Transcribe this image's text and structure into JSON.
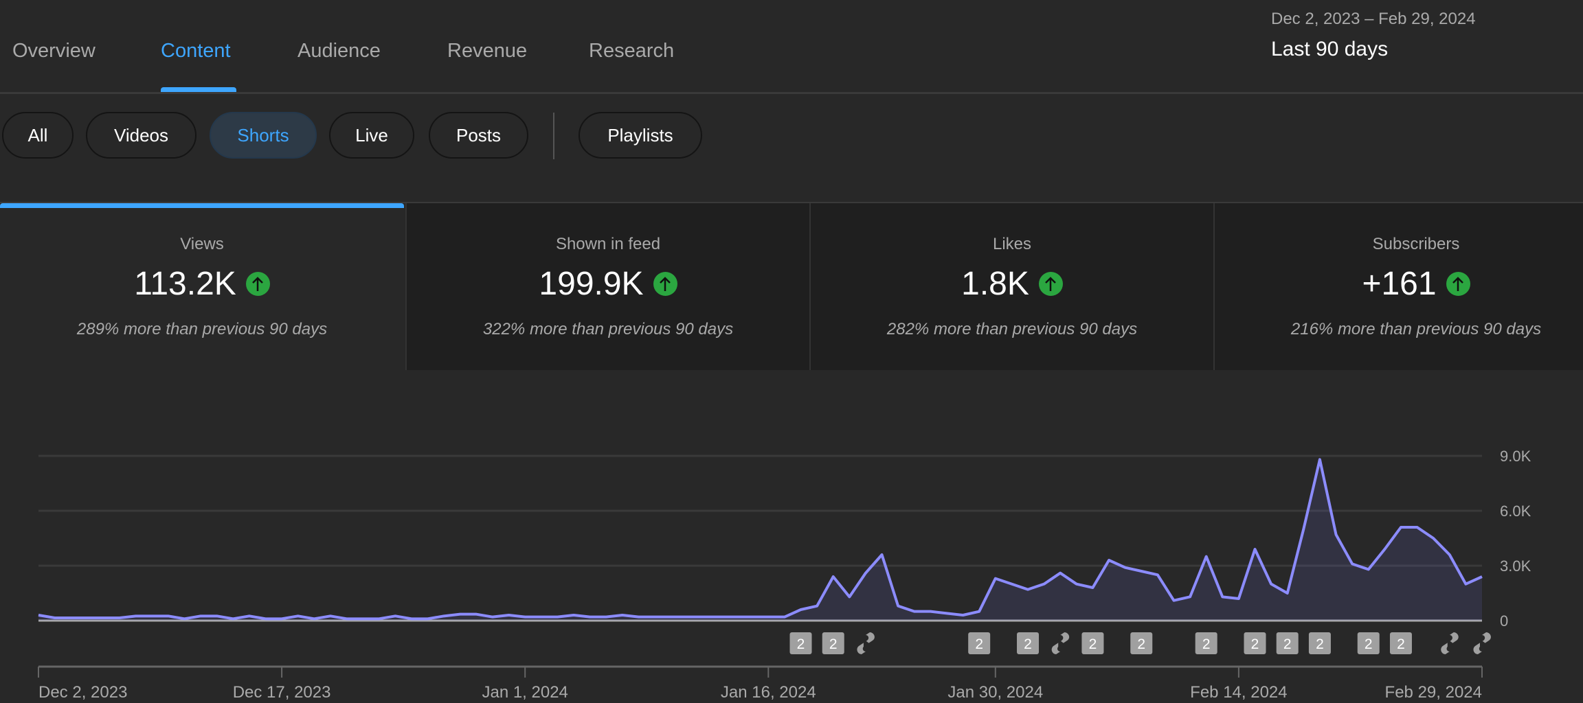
{
  "tabs": [
    {
      "label": "Overview"
    },
    {
      "label": "Content",
      "active": true
    },
    {
      "label": "Audience"
    },
    {
      "label": "Revenue"
    },
    {
      "label": "Research"
    }
  ],
  "date_range": {
    "range": "Dec 2, 2023 – Feb 29, 2024",
    "period": "Last 90 days"
  },
  "chips": [
    {
      "label": "All"
    },
    {
      "label": "Videos"
    },
    {
      "label": "Shorts",
      "active": true
    },
    {
      "label": "Live"
    },
    {
      "label": "Posts"
    },
    {
      "label": "Playlists"
    }
  ],
  "metrics": [
    {
      "label": "Views",
      "value": "113.2K",
      "trend": "up",
      "comparison": "289% more than previous 90 days",
      "active": true
    },
    {
      "label": "Shown in feed",
      "value": "199.9K",
      "trend": "up",
      "comparison": "322% more than previous 90 days"
    },
    {
      "label": "Likes",
      "value": "1.8K",
      "trend": "up",
      "comparison": "282% more than previous 90 days"
    },
    {
      "label": "Subscribers",
      "value": "+161",
      "trend": "up",
      "comparison": "216% more than previous 90 days"
    }
  ],
  "colors": {
    "accent": "#3ea6ff",
    "line": "#8c8cff",
    "up": "#2ba640"
  },
  "chart_data": {
    "type": "area",
    "title": "Views",
    "x_start": "Dec 2, 2023",
    "x_end": "Feb 29, 2024",
    "ylim": [
      0,
      9000
    ],
    "y_ticks": [
      {
        "v": 0,
        "label": "0"
      },
      {
        "v": 3000,
        "label": "3.0K"
      },
      {
        "v": 6000,
        "label": "6.0K"
      },
      {
        "v": 9000,
        "label": "9.0K"
      }
    ],
    "x_ticks": [
      {
        "day": 0,
        "label": "Dec 2, 2023"
      },
      {
        "day": 15,
        "label": "Dec 17, 2023"
      },
      {
        "day": 30,
        "label": "Jan 1, 2024"
      },
      {
        "day": 45,
        "label": "Jan 16, 2024"
      },
      {
        "day": 59,
        "label": "Jan 30, 2024"
      },
      {
        "day": 74,
        "label": "Feb 14, 2024"
      },
      {
        "day": 89,
        "label": "Feb 29, 2024"
      }
    ],
    "values": [
      300,
      150,
      150,
      150,
      150,
      150,
      250,
      250,
      250,
      100,
      250,
      250,
      100,
      250,
      100,
      100,
      250,
      100,
      250,
      100,
      100,
      100,
      250,
      100,
      100,
      250,
      350,
      350,
      200,
      300,
      200,
      200,
      200,
      300,
      200,
      200,
      300,
      200,
      200,
      200,
      200,
      200,
      200,
      200,
      200,
      200,
      200,
      600,
      800,
      2400,
      1300,
      2600,
      3600,
      800,
      500,
      500,
      400,
      300,
      500,
      2300,
      2000,
      1700,
      2000,
      2600,
      2000,
      1800,
      3300,
      2900,
      2700,
      2500,
      1100,
      1300,
      3500,
      1300,
      1200,
      3900,
      2000,
      1500,
      5000,
      8800,
      4700,
      3100,
      2800,
      3900,
      5100,
      5100,
      4500,
      3600,
      2000,
      2400
    ],
    "markers": [
      {
        "day": 47,
        "type": "count",
        "label": "2"
      },
      {
        "day": 49,
        "type": "count",
        "label": "2"
      },
      {
        "day": 51,
        "type": "short"
      },
      {
        "day": 58,
        "type": "count",
        "label": "2"
      },
      {
        "day": 61,
        "type": "count",
        "label": "2"
      },
      {
        "day": 63,
        "type": "short"
      },
      {
        "day": 65,
        "type": "count",
        "label": "2"
      },
      {
        "day": 68,
        "type": "count",
        "label": "2"
      },
      {
        "day": 72,
        "type": "count",
        "label": "2"
      },
      {
        "day": 75,
        "type": "count",
        "label": "2"
      },
      {
        "day": 77,
        "type": "count",
        "label": "2"
      },
      {
        "day": 79,
        "type": "count",
        "label": "2"
      },
      {
        "day": 82,
        "type": "count",
        "label": "2"
      },
      {
        "day": 84,
        "type": "count",
        "label": "2"
      },
      {
        "day": 87,
        "type": "short"
      },
      {
        "day": 89,
        "type": "short"
      }
    ]
  }
}
